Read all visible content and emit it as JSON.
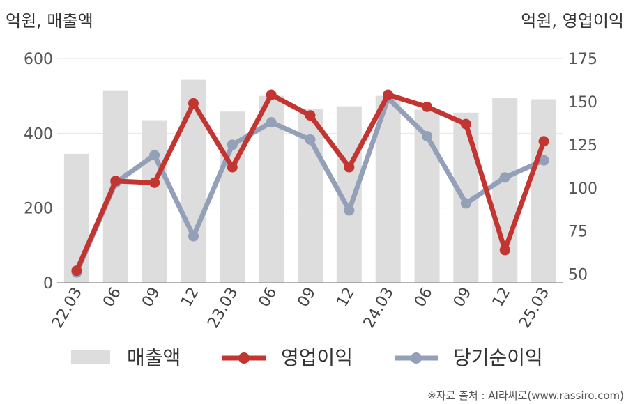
{
  "chart_data": {
    "type": "bar",
    "left_axis_unit": "억원, 매출액",
    "right_axis_unit": "억원, 영업이익",
    "categories": [
      "22.03",
      "06",
      "09",
      "12",
      "23.03",
      "06",
      "09",
      "12",
      "24.03",
      "06",
      "09",
      "12",
      "25.03"
    ],
    "left_yticks": [
      0,
      200,
      400,
      600
    ],
    "right_yticks": [
      50,
      75,
      100,
      125,
      150,
      175
    ],
    "left_ylim": [
      0,
      600
    ],
    "right_ylim": [
      45,
      175
    ],
    "series": [
      {
        "name": "매출액",
        "type": "bar",
        "axis": "left",
        "color": "#dddddd",
        "values": [
          345,
          515,
          435,
          543,
          458,
          500,
          466,
          472,
          500,
          463,
          455,
          495,
          491
        ]
      },
      {
        "name": "영업이익",
        "type": "line",
        "axis": "right",
        "color": "#c23531",
        "values": [
          52,
          104,
          103,
          149,
          112,
          154,
          142,
          112,
          154,
          147,
          137,
          64,
          127
        ]
      },
      {
        "name": "당기순이익",
        "type": "line",
        "axis": "right",
        "color": "#93a0b8",
        "values": [
          51,
          103,
          119,
          72,
          125,
          138,
          128,
          87,
          152,
          130,
          91,
          106,
          116
        ]
      }
    ],
    "grid": true,
    "legend_position": "bottom",
    "source": "※자료 출처 : AI라씨로(www.rassiro.com)"
  }
}
